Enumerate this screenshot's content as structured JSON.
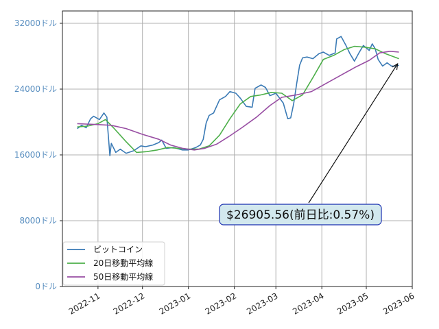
{
  "chart_data": {
    "type": "line",
    "title": "",
    "xlabel": "",
    "ylabel": "",
    "x_range": [
      "2022-10-08",
      "2023-06-01"
    ],
    "ylim": [
      0,
      33500
    ],
    "y_ticks": [
      {
        "value": 0,
        "label": "0ドル"
      },
      {
        "value": 8000,
        "label": "8000ドル"
      },
      {
        "value": 16000,
        "label": "16000ドル"
      },
      {
        "value": 24000,
        "label": "24000ドル"
      },
      {
        "value": 32000,
        "label": "32000ドル"
      }
    ],
    "x_ticks": [
      {
        "date": "2022-11-01",
        "label": "2022-11"
      },
      {
        "date": "2022-12-01",
        "label": "2022-12"
      },
      {
        "date": "2023-01-01",
        "label": "2023-01"
      },
      {
        "date": "2023-02-01",
        "label": "2023-02"
      },
      {
        "date": "2023-03-01",
        "label": "2023-03"
      },
      {
        "date": "2023-04-01",
        "label": "2023-04"
      },
      {
        "date": "2023-05-01",
        "label": "2023-05"
      },
      {
        "date": "2023-06-01",
        "label": "2023-06"
      }
    ],
    "grid": true,
    "legend_position": "lower-left",
    "series": [
      {
        "name": "ビットコイン",
        "color": "#3a7ab5",
        "points": [
          [
            "2022-10-18",
            19200
          ],
          [
            "2022-10-21",
            19600
          ],
          [
            "2022-10-24",
            19300
          ],
          [
            "2022-10-27",
            20400
          ],
          [
            "2022-10-29",
            20700
          ],
          [
            "2022-11-02",
            20300
          ],
          [
            "2022-11-05",
            21100
          ],
          [
            "2022-11-07",
            20600
          ],
          [
            "2022-11-09",
            15900
          ],
          [
            "2022-11-10",
            17400
          ],
          [
            "2022-11-13",
            16300
          ],
          [
            "2022-11-16",
            16700
          ],
          [
            "2022-11-20",
            16200
          ],
          [
            "2022-11-25",
            16500
          ],
          [
            "2022-11-30",
            17100
          ],
          [
            "2022-12-03",
            17000
          ],
          [
            "2022-12-08",
            17200
          ],
          [
            "2022-12-12",
            17500
          ],
          [
            "2022-12-14",
            17800
          ],
          [
            "2022-12-17",
            16800
          ],
          [
            "2022-12-22",
            16900
          ],
          [
            "2022-12-28",
            16600
          ],
          [
            "2023-01-01",
            16600
          ],
          [
            "2023-01-06",
            16900
          ],
          [
            "2023-01-09",
            17200
          ],
          [
            "2023-01-11",
            17900
          ],
          [
            "2023-01-13",
            19900
          ],
          [
            "2023-01-15",
            20800
          ],
          [
            "2023-01-18",
            21100
          ],
          [
            "2023-01-22",
            22700
          ],
          [
            "2023-01-26",
            23100
          ],
          [
            "2023-01-29",
            23700
          ],
          [
            "2023-02-02",
            23500
          ],
          [
            "2023-02-05",
            22900
          ],
          [
            "2023-02-09",
            21900
          ],
          [
            "2023-02-13",
            21800
          ],
          [
            "2023-02-15",
            24100
          ],
          [
            "2023-02-19",
            24500
          ],
          [
            "2023-02-22",
            24200
          ],
          [
            "2023-02-25",
            23200
          ],
          [
            "2023-03-01",
            23500
          ],
          [
            "2023-03-06",
            22300
          ],
          [
            "2023-03-09",
            20400
          ],
          [
            "2023-03-11",
            20500
          ],
          [
            "2023-03-13",
            22200
          ],
          [
            "2023-03-15",
            24600
          ],
          [
            "2023-03-17",
            26900
          ],
          [
            "2023-03-19",
            27800
          ],
          [
            "2023-03-22",
            27900
          ],
          [
            "2023-03-26",
            27700
          ],
          [
            "2023-03-30",
            28300
          ],
          [
            "2023-04-02",
            28500
          ],
          [
            "2023-04-06",
            28100
          ],
          [
            "2023-04-10",
            28400
          ],
          [
            "2023-04-11",
            30100
          ],
          [
            "2023-04-14",
            30400
          ],
          [
            "2023-04-17",
            29400
          ],
          [
            "2023-04-20",
            28300
          ],
          [
            "2023-04-23",
            27400
          ],
          [
            "2023-04-26",
            28400
          ],
          [
            "2023-04-29",
            29300
          ],
          [
            "2023-05-03",
            28700
          ],
          [
            "2023-05-05",
            29500
          ],
          [
            "2023-05-07",
            28900
          ],
          [
            "2023-05-09",
            27600
          ],
          [
            "2023-05-12",
            26800
          ],
          [
            "2023-05-15",
            27200
          ],
          [
            "2023-05-18",
            26800
          ],
          [
            "2023-05-21",
            26800
          ],
          [
            "2023-05-23",
            26905.56
          ]
        ]
      },
      {
        "name": "20日移動平均線",
        "color": "#4daf4a",
        "points": [
          [
            "2022-10-18",
            19400
          ],
          [
            "2022-10-25",
            19500
          ],
          [
            "2022-11-01",
            19800
          ],
          [
            "2022-11-06",
            20300
          ],
          [
            "2022-11-12",
            19200
          ],
          [
            "2022-11-20",
            17600
          ],
          [
            "2022-11-27",
            16300
          ],
          [
            "2022-12-04",
            16400
          ],
          [
            "2022-12-11",
            16600
          ],
          [
            "2022-12-18",
            16900
          ],
          [
            "2022-12-25",
            16800
          ],
          [
            "2023-01-01",
            16700
          ],
          [
            "2023-01-08",
            16700
          ],
          [
            "2023-01-15",
            17100
          ],
          [
            "2023-01-22",
            18400
          ],
          [
            "2023-01-29",
            20400
          ],
          [
            "2023-02-05",
            22200
          ],
          [
            "2023-02-12",
            23100
          ],
          [
            "2023-02-19",
            23300
          ],
          [
            "2023-02-26",
            23600
          ],
          [
            "2023-03-05",
            23500
          ],
          [
            "2023-03-12",
            22600
          ],
          [
            "2023-03-19",
            23300
          ],
          [
            "2023-03-26",
            25400
          ],
          [
            "2023-04-02",
            27600
          ],
          [
            "2023-04-09",
            28100
          ],
          [
            "2023-04-16",
            28800
          ],
          [
            "2023-04-23",
            29200
          ],
          [
            "2023-04-30",
            29100
          ],
          [
            "2023-05-07",
            28900
          ],
          [
            "2023-05-14",
            28300
          ],
          [
            "2023-05-23",
            27700
          ]
        ]
      },
      {
        "name": "50日移動平均線",
        "color": "#984ea3",
        "points": [
          [
            "2022-10-18",
            19800
          ],
          [
            "2022-10-30",
            19700
          ],
          [
            "2022-11-10",
            19600
          ],
          [
            "2022-11-20",
            19200
          ],
          [
            "2022-12-01",
            18500
          ],
          [
            "2022-12-12",
            17900
          ],
          [
            "2022-12-20",
            17200
          ],
          [
            "2022-12-28",
            16800
          ],
          [
            "2023-01-05",
            16600
          ],
          [
            "2023-01-12",
            16800
          ],
          [
            "2023-01-20",
            17300
          ],
          [
            "2023-01-28",
            18200
          ],
          [
            "2023-02-06",
            19300
          ],
          [
            "2023-02-16",
            20600
          ],
          [
            "2023-02-25",
            22000
          ],
          [
            "2023-03-05",
            23000
          ],
          [
            "2023-03-15",
            23300
          ],
          [
            "2023-03-25",
            23700
          ],
          [
            "2023-04-04",
            24700
          ],
          [
            "2023-04-14",
            25700
          ],
          [
            "2023-04-24",
            26700
          ],
          [
            "2023-05-03",
            27500
          ],
          [
            "2023-05-10",
            28400
          ],
          [
            "2023-05-17",
            28600
          ],
          [
            "2023-05-23",
            28500
          ]
        ]
      }
    ],
    "annotation": {
      "text": "$26905.56(前日比:0.57%)",
      "target": [
        "2023-05-23",
        26905.56
      ],
      "box_fill": "#d2e8ee",
      "box_edge": "#1a2fb0"
    },
    "tick_label_color": "#5a8fc0"
  }
}
